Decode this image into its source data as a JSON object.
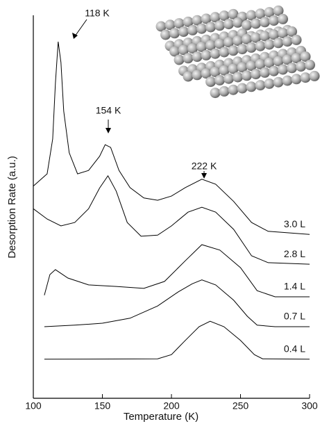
{
  "chart_data": {
    "type": "line",
    "x_label": "Temperature (K)",
    "y_label": "Desorption Rate (a.u.)",
    "xlim": [
      100,
      300
    ],
    "xticks": [
      100,
      150,
      200,
      250,
      300
    ],
    "ylim": [
      0,
      100
    ],
    "color": "#000000",
    "annotations": [
      "118 K",
      "154 K",
      "222 K"
    ],
    "series": [
      {
        "name": "3.0 L",
        "color": "#000000",
        "x": [
          100,
          110,
          114,
          116,
          118,
          120,
          122,
          126,
          132,
          140,
          148,
          152,
          156,
          162,
          170,
          180,
          190,
          200,
          210,
          222,
          232,
          245,
          258,
          270,
          300
        ],
        "values": [
          55.4,
          58.6,
          67.7,
          82.2,
          93.1,
          87.7,
          75.0,
          64.1,
          58.6,
          59.5,
          63.2,
          66.2,
          65.5,
          59.5,
          55.0,
          52.3,
          51.7,
          52.8,
          55.0,
          57.2,
          55.9,
          51.4,
          45.9,
          43.6,
          42.8
        ]
      },
      {
        "name": "2.8 L",
        "color": "#000000",
        "x": [
          100,
          110,
          120,
          130,
          140,
          148,
          154,
          160,
          168,
          178,
          190,
          200,
          212,
          222,
          232,
          245,
          258,
          270,
          300
        ],
        "values": [
          49.5,
          46.8,
          45.0,
          45.9,
          49.5,
          54.9,
          58.1,
          54.1,
          45.9,
          42.3,
          42.6,
          45.0,
          48.6,
          49.9,
          48.6,
          44.1,
          37.2,
          35.4,
          35.0
        ]
      },
      {
        "name": "1.4 L",
        "color": "#000000",
        "x": [
          108,
          112,
          116,
          125,
          140,
          160,
          180,
          195,
          210,
          222,
          235,
          250,
          262,
          275,
          300
        ],
        "values": [
          26.9,
          32.3,
          33.6,
          31.4,
          29.6,
          29.2,
          28.7,
          30.5,
          35.9,
          40.1,
          38.7,
          34.1,
          28.1,
          26.5,
          26.5
        ]
      },
      {
        "name": "0.7 L",
        "color": "#000000",
        "x": [
          108,
          130,
          150,
          170,
          190,
          205,
          215,
          222,
          232,
          245,
          255,
          262,
          275,
          300
        ],
        "values": [
          18.7,
          19.1,
          19.6,
          20.9,
          24.1,
          27.8,
          29.9,
          30.9,
          29.6,
          25.6,
          21.4,
          19.1,
          18.7,
          18.7
        ]
      },
      {
        "name": "0.4 L",
        "color": "#000000",
        "x": [
          108,
          190,
          200,
          210,
          220,
          228,
          238,
          250,
          260,
          266,
          300
        ],
        "values": [
          10.2,
          10.3,
          11.4,
          15.1,
          18.7,
          20.1,
          18.7,
          15.1,
          11.4,
          10.3,
          10.2
        ]
      }
    ]
  }
}
